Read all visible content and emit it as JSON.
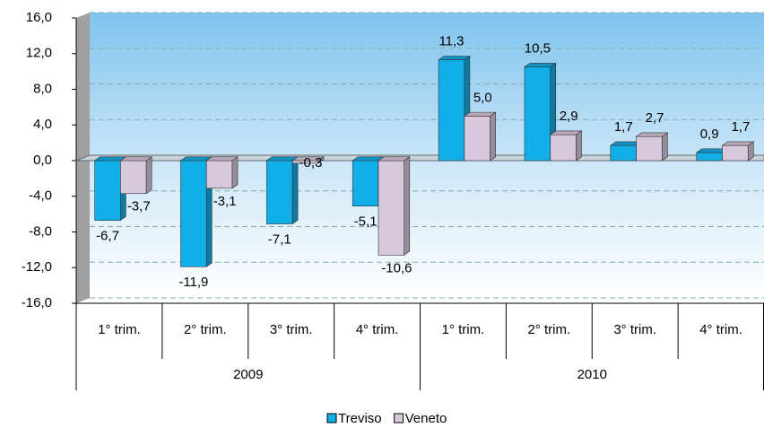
{
  "chart_data": {
    "type": "bar3d",
    "category_groups": [
      {
        "name": "2009",
        "categories": [
          "1° trim.",
          "2° trim.",
          "3° trim.",
          "4° trim."
        ]
      },
      {
        "name": "2010",
        "categories": [
          "1° trim.",
          "2° trim.",
          "3° trim.",
          "4° trim."
        ]
      }
    ],
    "series": [
      {
        "name": "Treviso",
        "color": "#12aee8",
        "values": [
          -6.7,
          -11.9,
          -7.1,
          -5.1,
          11.3,
          10.5,
          1.7,
          0.9
        ],
        "value_labels": [
          "-6,7",
          "-11,9",
          "-7,1",
          "-5,1",
          "11,3",
          "10,5",
          "1,7",
          "0,9"
        ]
      },
      {
        "name": "Veneto",
        "color": "#d8c8dc",
        "values": [
          -3.7,
          -3.1,
          -0.3,
          -10.6,
          5.0,
          2.9,
          2.7,
          1.7
        ],
        "value_labels": [
          "-3,7",
          "-3,1",
          "-0,3",
          "-10,6",
          "5,0",
          "2,9",
          "2,7",
          "1,7"
        ]
      }
    ],
    "ylim": [
      -16,
      16
    ],
    "yticks": [
      {
        "value": -16,
        "label": "-16,0"
      },
      {
        "value": -12,
        "label": "-12,0"
      },
      {
        "value": -8,
        "label": "-8,0"
      },
      {
        "value": -4,
        "label": "-4,0"
      },
      {
        "value": 0,
        "label": "0,0"
      },
      {
        "value": 4,
        "label": "4,0"
      },
      {
        "value": 8,
        "label": "8,0"
      },
      {
        "value": 12,
        "label": "12,0"
      },
      {
        "value": 16,
        "label": "16,0"
      }
    ],
    "grid": true,
    "legend": "bottom"
  }
}
